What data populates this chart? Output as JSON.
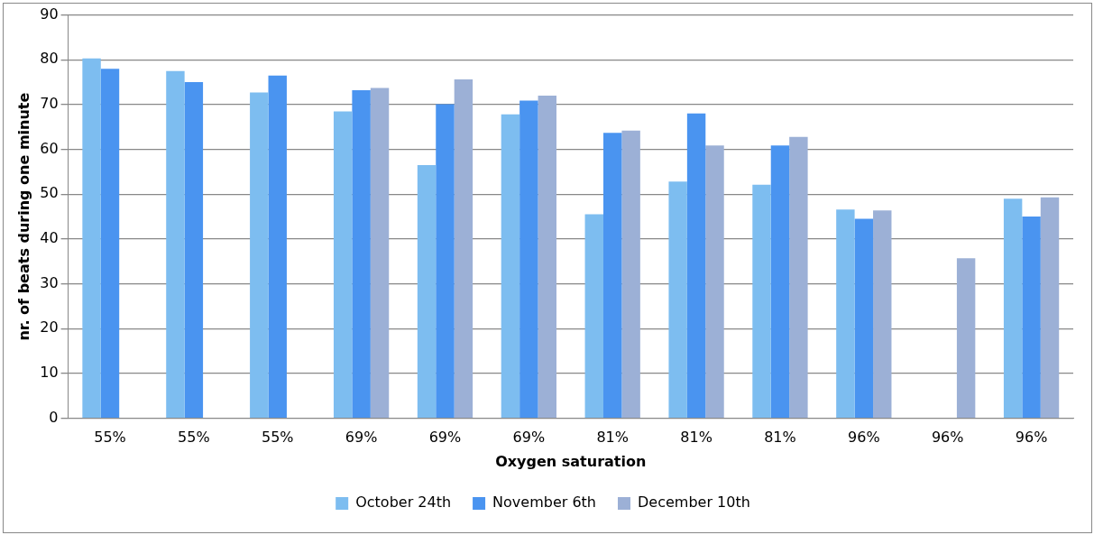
{
  "chart_data": {
    "type": "bar",
    "xlabel": "Oxygen saturation",
    "ylabel": "nr. of beats during one minute",
    "categories": [
      "55%",
      "55%",
      "55%",
      "69%",
      "69%",
      "69%",
      "81%",
      "81%",
      "81%",
      "96%",
      "96%",
      "96%"
    ],
    "series": [
      {
        "name": "October 24th",
        "color": "#7dbdf0",
        "values": [
          80.3,
          77.5,
          72.7,
          68.5,
          56.5,
          67.8,
          45.5,
          52.8,
          52.1,
          46.6,
          null,
          49
        ]
      },
      {
        "name": "November 6th",
        "color": "#4a94f0",
        "values": [
          78,
          75,
          76.5,
          73.2,
          70.1,
          70.9,
          63.7,
          68,
          60.9,
          44.5,
          null,
          45
        ]
      },
      {
        "name": "December 10th",
        "color": "#9cb0d6",
        "values": [
          null,
          null,
          null,
          73.7,
          75.6,
          72,
          64.2,
          60.9,
          62.8,
          46.4,
          35.7,
          49.3
        ]
      }
    ],
    "ylim": [
      0,
      90
    ],
    "yticks": [
      0,
      10,
      20,
      30,
      40,
      50,
      60,
      70,
      80,
      90
    ],
    "grid": "y",
    "legend": "bottom"
  }
}
